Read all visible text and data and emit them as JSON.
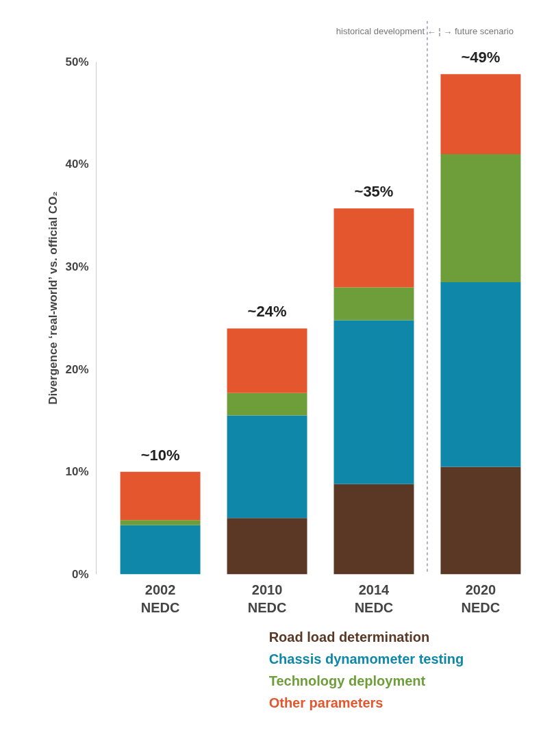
{
  "chart_data": {
    "type": "bar",
    "stacked": true,
    "ylabel": "Divergence ‘real-world’ vs. official CO₂",
    "categories": [
      "2002\nNEDC",
      "2010\nNEDC",
      "2014\nNEDC",
      "2020\nNEDC"
    ],
    "series": [
      {
        "name": "Road load determination",
        "color": "#5a3825",
        "values": [
          0,
          5.5,
          8.8,
          10.5
        ]
      },
      {
        "name": "Chassis dynamometer testing",
        "color": "#0e87a8",
        "values": [
          4.8,
          10,
          16,
          18
        ]
      },
      {
        "name": "Technology deployment",
        "color": "#6e9e3a",
        "values": [
          0.5,
          2.2,
          3.2,
          12.5
        ]
      },
      {
        "name": "Other parameters",
        "color": "#e4572e",
        "values": [
          4.7,
          6.3,
          7.7,
          7.8
        ]
      }
    ],
    "totals": [
      "~10%",
      "~24%",
      "~35%",
      "~49%"
    ],
    "ylim": [
      0,
      50
    ],
    "yticks": [
      {
        "value": 0,
        "label": "0%"
      },
      {
        "value": 10,
        "label": "10%"
      },
      {
        "value": 20,
        "label": "20%"
      },
      {
        "value": 30,
        "label": "30%"
      },
      {
        "value": 40,
        "label": "40%"
      },
      {
        "value": 50,
        "label": "50%"
      }
    ],
    "annotations": [
      "historical development ←  ¦  → future scenario"
    ],
    "grid": false,
    "legend": "bottom"
  }
}
